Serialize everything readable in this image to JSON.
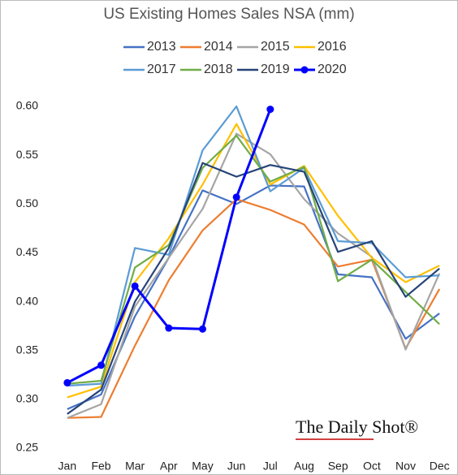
{
  "chart_data": {
    "type": "line",
    "title": "US Existing Homes Sales NSA (mm)",
    "categories": [
      "Jan",
      "Feb",
      "Mar",
      "Apr",
      "May",
      "Jun",
      "Jul",
      "Aug",
      "Sep",
      "Oct",
      "Nov",
      "Dec"
    ],
    "series": [
      {
        "name": "2013",
        "color": "#4472c4",
        "values": [
          0.29,
          0.305,
          0.385,
          0.445,
          0.514,
          0.5,
          0.519,
          0.518,
          0.428,
          0.425,
          0.362,
          0.388
        ]
      },
      {
        "name": "2014",
        "color": "#ed7d31",
        "values": [
          0.281,
          0.282,
          0.355,
          0.422,
          0.473,
          0.505,
          0.494,
          0.479,
          0.436,
          0.443,
          0.352,
          0.413
        ]
      },
      {
        "name": "2015",
        "color": "#a5a5a5",
        "values": [
          0.281,
          0.295,
          0.395,
          0.445,
          0.495,
          0.572,
          0.551,
          0.505,
          0.47,
          0.446,
          0.351,
          0.429
        ]
      },
      {
        "name": "2016",
        "color": "#ffc000",
        "values": [
          0.302,
          0.313,
          0.42,
          0.465,
          0.52,
          0.582,
          0.52,
          0.539,
          0.488,
          0.445,
          0.42,
          0.437
        ]
      },
      {
        "name": "2017",
        "color": "#5b9bd5",
        "values": [
          0.314,
          0.316,
          0.455,
          0.448,
          0.555,
          0.6,
          0.513,
          0.537,
          0.462,
          0.46,
          0.425,
          0.427
        ]
      },
      {
        "name": "2018",
        "color": "#70ad47",
        "values": [
          0.316,
          0.319,
          0.435,
          0.458,
          0.537,
          0.57,
          0.523,
          0.538,
          0.421,
          0.443,
          0.41,
          0.377
        ]
      },
      {
        "name": "2019",
        "color": "#264478",
        "values": [
          0.285,
          0.31,
          0.4,
          0.455,
          0.542,
          0.528,
          0.54,
          0.533,
          0.451,
          0.462,
          0.405,
          0.434
        ]
      },
      {
        "name": "2020",
        "color": "#0000ff",
        "markers": true,
        "values": [
          0.317,
          0.335,
          0.416,
          0.373,
          0.372,
          0.507,
          0.597,
          null,
          null,
          null,
          null,
          null
        ]
      }
    ],
    "ylim": [
      0.25,
      0.6
    ],
    "yticks": [
      {
        "value": 0.25,
        "label": "0.25"
      },
      {
        "value": 0.3,
        "label": "0.30"
      },
      {
        "value": 0.35,
        "label": "0.35"
      },
      {
        "value": 0.4,
        "label": "0.40"
      },
      {
        "value": 0.45,
        "label": "0.45"
      },
      {
        "value": 0.5,
        "label": "0.50"
      },
      {
        "value": 0.55,
        "label": "0.55"
      },
      {
        "value": 0.6,
        "label": "0.60"
      }
    ],
    "grid": false,
    "watermark": "The Daily Shot®"
  }
}
